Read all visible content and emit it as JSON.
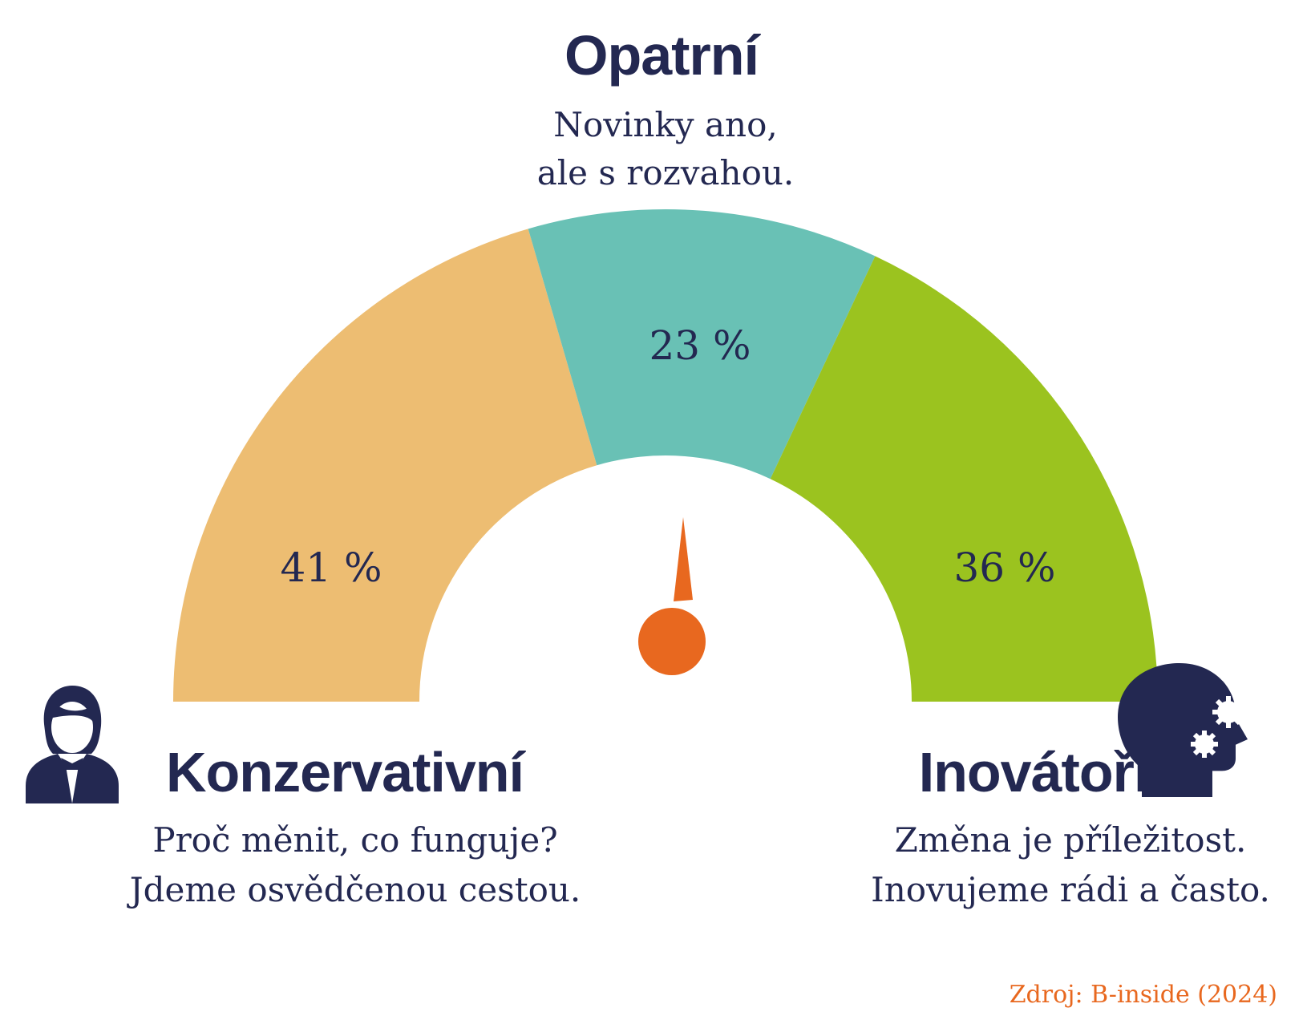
{
  "colors": {
    "text": "#232851",
    "accent": "#E8681F",
    "icon": "#232851"
  },
  "chart_data": {
    "type": "pie",
    "variant": "semicircle-gauge",
    "unit": "%",
    "segments": [
      {
        "key": "konzervativni",
        "title": "Konzervativní",
        "value": 41,
        "label": "41 %",
        "color": "#EDBD72",
        "description": [
          "Proč měnit, co funguje?",
          "Jdeme osvědčenou cestou."
        ],
        "icon": "woman-person-icon"
      },
      {
        "key": "opatrni",
        "title": "Opatrní",
        "value": 23,
        "label": "23 %",
        "color": "#69C1B5",
        "description": [
          "Novinky ano,",
          "ale s rozvahou."
        ],
        "icon": ""
      },
      {
        "key": "inovatori",
        "title": "Inovátoři",
        "value": 36,
        "label": "36 %",
        "color": "#9BC31F",
        "description": [
          "Změna je příležitost.",
          "Inovujeme rádi a často."
        ],
        "icon": "head-gears-icon"
      }
    ],
    "needle_icon": "gauge-needle-icon"
  },
  "source": "Zdroj: B-inside (2024)"
}
